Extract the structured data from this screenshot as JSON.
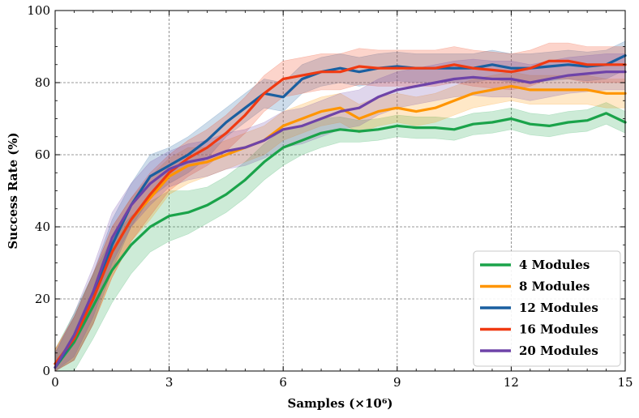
{
  "chart_data": {
    "type": "line",
    "xlabel": "Samples (×10⁶)",
    "ylabel": "Success Rate (%)",
    "xlim": [
      0,
      15
    ],
    "ylim": [
      0,
      100
    ],
    "xticks": [
      0,
      3,
      6,
      9,
      12,
      15
    ],
    "yticks": [
      0,
      20,
      40,
      60,
      80,
      100
    ],
    "grid": true,
    "legend_position": "bottom-right",
    "series": [
      {
        "name": "4 Modules",
        "color": "#1aa34a",
        "x": [
          0,
          0.5,
          1,
          1.5,
          2,
          2.5,
          3,
          3.5,
          4,
          4.5,
          5,
          5.5,
          6,
          6.5,
          7,
          7.5,
          8,
          8.5,
          9,
          9.5,
          10,
          10.5,
          11,
          11.5,
          12,
          12.5,
          13,
          13.5,
          14,
          14.5,
          15
        ],
        "values": [
          1,
          8,
          18,
          28,
          35,
          40,
          43,
          44,
          46,
          49,
          53,
          58,
          62,
          64,
          66,
          67,
          66.5,
          67,
          68,
          67.5,
          67.5,
          67,
          68.5,
          69,
          70,
          68.5,
          68,
          69,
          69.5,
          71.5,
          69
        ],
        "band": [
          5,
          8,
          9,
          9,
          8,
          7,
          7,
          6,
          5,
          5,
          5,
          5,
          5,
          4,
          4,
          3.5,
          3,
          3,
          3,
          3,
          3,
          3,
          3,
          3,
          3,
          3,
          3,
          3,
          3,
          3,
          3
        ]
      },
      {
        "name": "8 Modules",
        "color": "#ff9500",
        "x": [
          0,
          0.5,
          1,
          1.5,
          2,
          2.5,
          3,
          3.5,
          4,
          4.5,
          5,
          5.5,
          6,
          6.5,
          7,
          7.5,
          8,
          8.5,
          9,
          9.5,
          10,
          10.5,
          11,
          11.5,
          12,
          12.5,
          13,
          13.5,
          14,
          14.5,
          15
        ],
        "values": [
          2,
          9,
          20,
          33,
          42,
          48,
          54,
          57,
          58,
          60,
          62,
          64,
          68,
          70,
          72,
          73,
          70,
          72,
          73,
          72,
          73,
          75,
          77,
          78,
          79,
          78,
          78,
          78,
          78,
          77,
          77
        ],
        "band": [
          4,
          6,
          7,
          7,
          6,
          6,
          5,
          5,
          4,
          4,
          4,
          4,
          4,
          4,
          4,
          4,
          4,
          4,
          4,
          4,
          4,
          4,
          4,
          4,
          4,
          4,
          4,
          4,
          4,
          4,
          4
        ]
      },
      {
        "name": "12 Modules",
        "color": "#1a5fa0",
        "x": [
          0,
          0.5,
          1,
          1.5,
          2,
          2.5,
          3,
          3.5,
          4,
          4.5,
          5,
          5.5,
          6,
          6.5,
          7,
          7.5,
          8,
          8.5,
          9,
          9.5,
          10,
          10.5,
          11,
          11.5,
          12,
          12.5,
          13,
          13.5,
          14,
          14.5,
          15
        ],
        "values": [
          1,
          9,
          20,
          35,
          46,
          54,
          57,
          60,
          64,
          69,
          73,
          77,
          76,
          81,
          83,
          84,
          83,
          84,
          84.5,
          84,
          84,
          84,
          84,
          85,
          84,
          84,
          84.5,
          85,
          84.5,
          85,
          87.5
        ],
        "band": [
          4,
          6,
          7,
          7,
          6,
          6,
          5,
          5,
          5,
          4,
          4,
          4,
          4,
          4,
          4,
          4,
          4,
          4,
          4,
          4,
          4,
          4,
          4,
          4,
          4,
          4,
          4,
          4,
          4,
          4,
          4
        ]
      },
      {
        "name": "16 Modules",
        "color": "#f03a12",
        "x": [
          0,
          0.5,
          1,
          1.5,
          2,
          2.5,
          3,
          3.5,
          4,
          4.5,
          5,
          5.5,
          6,
          6.5,
          7,
          7.5,
          8,
          8.5,
          9,
          9.5,
          10,
          10.5,
          11,
          11.5,
          12,
          12.5,
          13,
          13.5,
          14,
          14.5,
          15
        ],
        "values": [
          2,
          9,
          20,
          33,
          42,
          49,
          55,
          59,
          62,
          66,
          71,
          77,
          81,
          82,
          83,
          83,
          84.5,
          84,
          84,
          84,
          84,
          85,
          84,
          83.5,
          83,
          84,
          86,
          86,
          85,
          85,
          85
        ],
        "band": [
          4,
          6,
          7,
          7,
          6,
          6,
          5,
          5,
          5,
          5,
          5,
          5,
          5,
          5,
          5,
          5,
          5,
          5,
          5,
          5,
          5,
          5,
          5,
          5,
          5,
          5,
          5,
          5,
          5,
          5,
          5
        ]
      },
      {
        "name": "20 Modules",
        "color": "#6e43a8",
        "x": [
          0,
          0.5,
          1,
          1.5,
          2,
          2.5,
          3,
          3.5,
          4,
          4.5,
          5,
          5.5,
          6,
          6.5,
          7,
          7.5,
          8,
          8.5,
          9,
          9.5,
          10,
          10.5,
          11,
          11.5,
          12,
          12.5,
          13,
          13.5,
          14,
          14.5,
          15
        ],
        "values": [
          1,
          10,
          22,
          37,
          46,
          52,
          56,
          58,
          59,
          61,
          62,
          64,
          67,
          68,
          70,
          72,
          73,
          76,
          78,
          79,
          80,
          81,
          81.5,
          81,
          81,
          80,
          81,
          82,
          82.5,
          83,
          83
        ],
        "band": [
          4,
          6,
          7,
          7,
          6,
          6,
          5,
          5,
          5,
          5,
          5,
          5,
          5,
          5,
          5,
          5,
          5,
          5,
          5,
          5,
          5,
          5,
          5,
          5,
          5,
          5,
          5,
          5,
          5,
          5,
          5
        ]
      }
    ]
  }
}
